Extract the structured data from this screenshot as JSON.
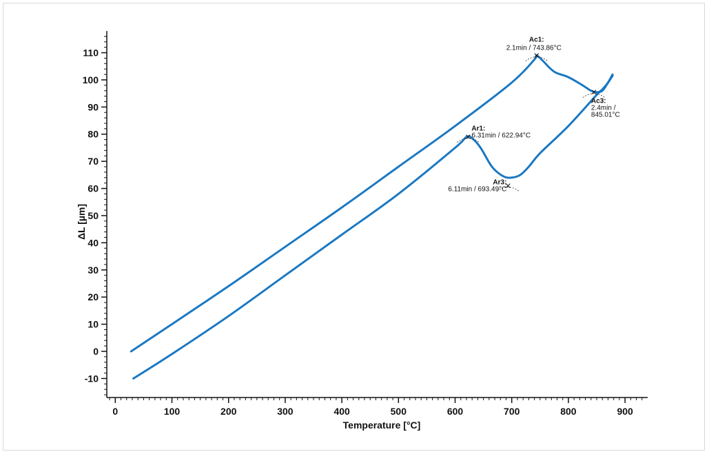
{
  "chart_data": {
    "type": "line",
    "xlabel": "Temperature [°C]",
    "ylabel": "ΔL [µm]",
    "xlim": [
      -15,
      940
    ],
    "ylim": [
      -17,
      118
    ],
    "x_ticks": [
      0,
      100,
      200,
      300,
      400,
      500,
      600,
      700,
      800,
      900
    ],
    "y_ticks": [
      -10,
      0,
      10,
      20,
      30,
      40,
      50,
      60,
      70,
      80,
      90,
      100,
      110
    ],
    "grid": false,
    "line_color": "#1a78c2",
    "series": [
      {
        "points": [
          [
            28,
            0
          ],
          [
            100,
            10
          ],
          [
            200,
            24
          ],
          [
            300,
            38.5
          ],
          [
            400,
            53
          ],
          [
            500,
            68
          ],
          [
            600,
            83
          ],
          [
            700,
            99
          ],
          [
            740,
            107.5
          ],
          [
            744,
            109
          ],
          [
            755,
            107
          ],
          [
            775,
            103
          ],
          [
            800,
            101
          ],
          [
            825,
            98
          ],
          [
            840,
            96
          ],
          [
            850,
            95.5
          ],
          [
            860,
            96
          ],
          [
            870,
            99
          ],
          [
            878,
            102
          ]
        ]
      },
      {
        "points": [
          [
            32,
            -10
          ],
          [
            100,
            -1
          ],
          [
            200,
            13
          ],
          [
            300,
            28
          ],
          [
            400,
            43
          ],
          [
            500,
            58
          ],
          [
            600,
            75
          ],
          [
            620,
            79
          ],
          [
            630,
            78.5
          ],
          [
            645,
            75
          ],
          [
            665,
            68
          ],
          [
            685,
            64.5
          ],
          [
            700,
            64
          ],
          [
            715,
            65
          ],
          [
            730,
            68
          ],
          [
            750,
            73
          ],
          [
            800,
            83
          ],
          [
            850,
            94.5
          ],
          [
            860,
            96.5
          ],
          [
            870,
            99
          ],
          [
            878,
            101.5
          ]
        ]
      }
    ],
    "annotations": [
      {
        "name": "Ac1:",
        "lines": [
          "2.1min / 743.86°C"
        ],
        "x": 743.86,
        "y": 109,
        "position": "above"
      },
      {
        "name": "Ac3:",
        "lines": [
          "2.4min /",
          "845.01°C"
        ],
        "x": 845.01,
        "y": 95.5,
        "position": "below-right"
      },
      {
        "name": "Ar1:",
        "lines": [
          "6.31min / 622.94°C"
        ],
        "x": 622.94,
        "y": 79,
        "position": "right"
      },
      {
        "name": "Ar3:",
        "lines": [
          "6.11min / 693.49°C"
        ],
        "x": 693.49,
        "y": 61,
        "position": "below-left"
      }
    ]
  }
}
